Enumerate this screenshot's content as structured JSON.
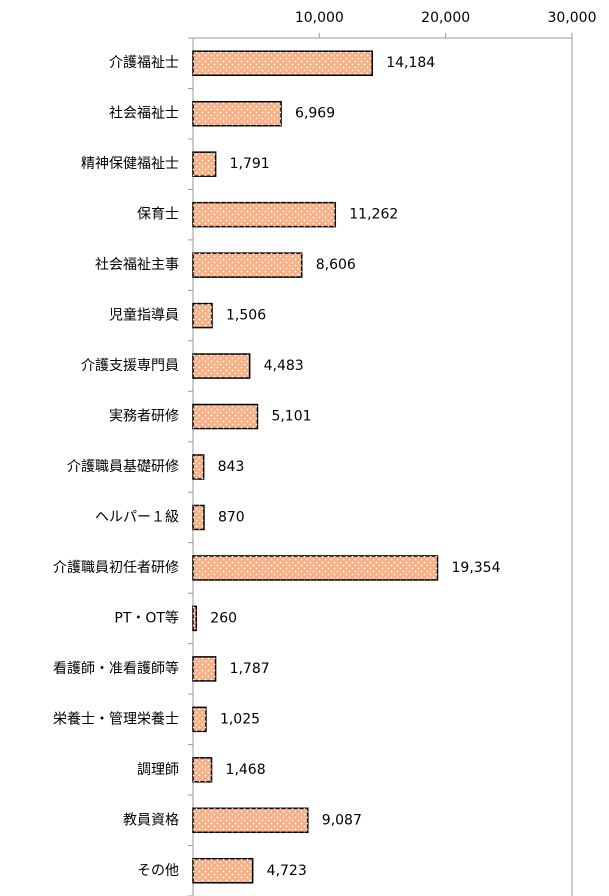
{
  "chart_data": {
    "type": "barh",
    "categories": [
      "介護福祉士",
      "社会福祉士",
      "精神保健福祉士",
      "保育士",
      "社会福祉主事",
      "児童指導員",
      "介護支援専門員",
      "実務者研修",
      "介護職員基礎研修",
      "ヘルパー１級",
      "介護職員初任者研修",
      "PT・OT等",
      "看護師・准看護師等",
      "栄養士・管理栄養士",
      "調理師",
      "教員資格",
      "その他"
    ],
    "values": [
      14184,
      6969,
      1791,
      11262,
      8606,
      1506,
      4483,
      5101,
      843,
      870,
      19354,
      260,
      1787,
      1025,
      1468,
      9087,
      4723
    ],
    "value_labels": [
      "14,184",
      "6,969",
      "1,791",
      "11,262",
      "8,606",
      "1,506",
      "4,483",
      "5,101",
      "843",
      "870",
      "19,354",
      "260",
      "1,787",
      "1,025",
      "1,468",
      "9,087",
      "4,723"
    ],
    "color": "#f8b084",
    "xlim": [
      0,
      30000
    ],
    "xticks": [
      {
        "value": 10000,
        "label": "10,000"
      },
      {
        "value": 20000,
        "label": "20,000"
      },
      {
        "value": 30000,
        "label": "30,000"
      }
    ]
  }
}
